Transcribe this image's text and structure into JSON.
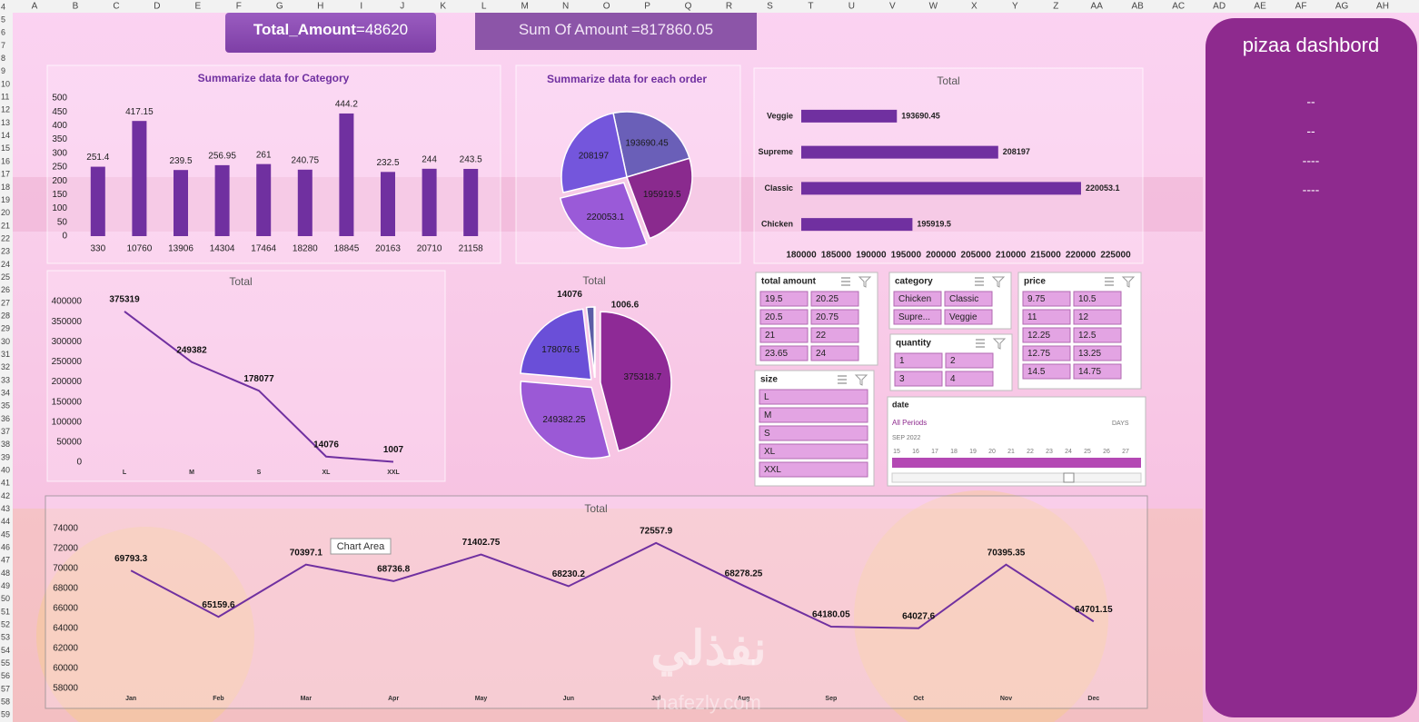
{
  "sheet": {
    "columns": [
      "A",
      "B",
      "C",
      "D",
      "E",
      "F",
      "G",
      "H",
      "I",
      "J",
      "K",
      "L",
      "M",
      "N",
      "O",
      "P",
      "Q",
      "R",
      "S",
      "T",
      "U",
      "V",
      "W",
      "X",
      "Y",
      "Z",
      "AA",
      "AB",
      "AC",
      "AD",
      "AE",
      "AF",
      "AG",
      "AH"
    ],
    "rows": [
      4,
      5,
      6,
      7,
      8,
      9,
      10,
      11,
      12,
      13,
      14,
      15,
      16,
      17,
      18,
      19,
      20,
      21,
      22,
      23,
      24,
      25,
      26,
      27,
      28,
      29,
      30,
      31,
      32,
      33,
      34,
      35,
      36,
      37,
      38,
      39,
      40,
      41,
      42,
      43,
      44,
      45,
      46,
      47,
      48,
      49,
      50,
      51,
      52,
      53,
      54,
      55,
      56,
      57,
      58,
      59
    ]
  },
  "kpis": [
    {
      "label": "Total_Amount",
      "value": "=48620"
    },
    {
      "label": "Sum Of Amount",
      "value": "=817860.05"
    }
  ],
  "chart_data": [
    {
      "type": "bar",
      "title": "Summarize data for Category",
      "categories": [
        "330",
        "10760",
        "13906",
        "14304",
        "17464",
        "18280",
        "18845",
        "20163",
        "20710",
        "21158"
      ],
      "values": [
        251.4,
        417.15,
        239.5,
        256.95,
        261,
        240.75,
        444.2,
        232.5,
        244,
        243.5
      ],
      "color": "#7030a0",
      "ylim": [
        0,
        500
      ],
      "yticks": [
        0,
        50,
        100,
        150,
        200,
        250,
        300,
        350,
        400,
        450,
        500
      ]
    },
    {
      "type": "pie",
      "title": "Summarize data for each order",
      "values": [
        193690.45,
        195919.5,
        220053.1,
        208197
      ],
      "colors": [
        "#6a5fb8",
        "#8a2a8e",
        "#9a5ad8",
        "#7456dc"
      ]
    },
    {
      "type": "bar",
      "horizontal": true,
      "title": "Total",
      "categories": [
        "Veggie",
        "Supreme",
        "Classic",
        "Chicken"
      ],
      "values": [
        193690.45,
        208197,
        220053.1,
        195919.5
      ],
      "color": "#7030a0",
      "xlim": [
        180000,
        225000
      ],
      "xticks": [
        180000,
        185000,
        190000,
        195000,
        200000,
        205000,
        210000,
        215000,
        220000,
        225000
      ]
    },
    {
      "type": "line",
      "title": "Total",
      "categories": [
        "L",
        "M",
        "S",
        "XL",
        "XXL"
      ],
      "values": [
        375319,
        249382,
        178077,
        14076,
        1007
      ],
      "color": "#7030a0",
      "ylim": [
        0,
        400000
      ],
      "yticks": [
        0,
        50000,
        100000,
        150000,
        200000,
        250000,
        300000,
        350000,
        400000
      ]
    },
    {
      "type": "pie",
      "title": "Total",
      "values": [
        375318.7,
        249382.25,
        178076.5,
        14076,
        1006.6
      ],
      "colors": [
        "#8e2a96",
        "#9b59d6",
        "#6a4fd8",
        "#5b5ea6",
        "#7b3fa8"
      ]
    },
    {
      "type": "line",
      "title": "Total",
      "categories": [
        "Jan",
        "Feb",
        "Mar",
        "Apr",
        "May",
        "Jun",
        "Jul",
        "Aug",
        "Sep",
        "Oct",
        "Nov",
        "Dec"
      ],
      "values": [
        69793.3,
        65159.6,
        70397.1,
        68736.8,
        71402.75,
        68230.2,
        72557.9,
        68278.25,
        64180.05,
        64027.6,
        70395.35,
        64701.15
      ],
      "color": "#7030a0",
      "ylim": [
        58000,
        74000
      ],
      "yticks": [
        58000,
        60000,
        62000,
        64000,
        66000,
        68000,
        70000,
        72000,
        74000
      ]
    }
  ],
  "slicers": [
    {
      "title": "total amount",
      "items": [
        "19.5",
        "20.25",
        "20.5",
        "20.75",
        "21",
        "22",
        "23.65",
        "24"
      ]
    },
    {
      "title": "category",
      "items": [
        "Chicken",
        "Classic",
        "Supre...",
        "Veggie"
      ]
    },
    {
      "title": "price",
      "items": [
        "9.75",
        "10.5",
        "11",
        "12",
        "12.25",
        "12.5",
        "12.75",
        "13.25",
        "14.5",
        "14.75"
      ]
    },
    {
      "title": "quantity",
      "items": [
        "1",
        "2",
        "3",
        "4"
      ]
    },
    {
      "title": "size",
      "items": [
        "L",
        "M",
        "S",
        "XL",
        "XXL"
      ]
    }
  ],
  "timeline": {
    "title": "date",
    "period": "All Periods",
    "unit": "DAYS",
    "month": "SEP 2022",
    "days": [
      15,
      16,
      17,
      18,
      19,
      20,
      21,
      22,
      23,
      24,
      25,
      26,
      27
    ]
  },
  "tooltip": "Chart Area",
  "watermark": {
    "text": "نفذلي",
    "site": "nafezly.com"
  },
  "panel": {
    "title": "pizaa dashbord",
    "lines": [
      "--",
      "--",
      "----",
      "----"
    ]
  }
}
